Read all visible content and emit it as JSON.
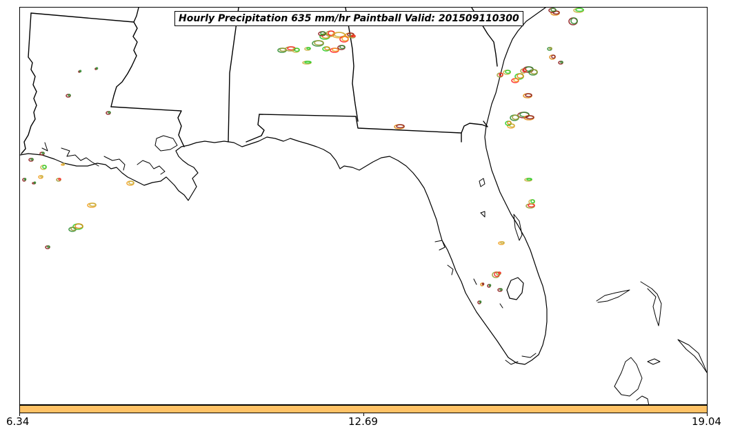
{
  "map": {
    "title": "Hourly Precipitation 635 mm/hr Paintball Valid: 201509110300",
    "line_color": "#000000",
    "paint_colors": [
      "#8b1a1a",
      "#ff2020",
      "#22cc22",
      "#2e8b2e",
      "#f0a020",
      "#e08a10",
      "#9a9a30",
      "#c8b040"
    ]
  },
  "colorbar": {
    "fill_color": "#ffc266",
    "ticks": [
      "6.34",
      "12.69",
      "19.04"
    ]
  }
}
